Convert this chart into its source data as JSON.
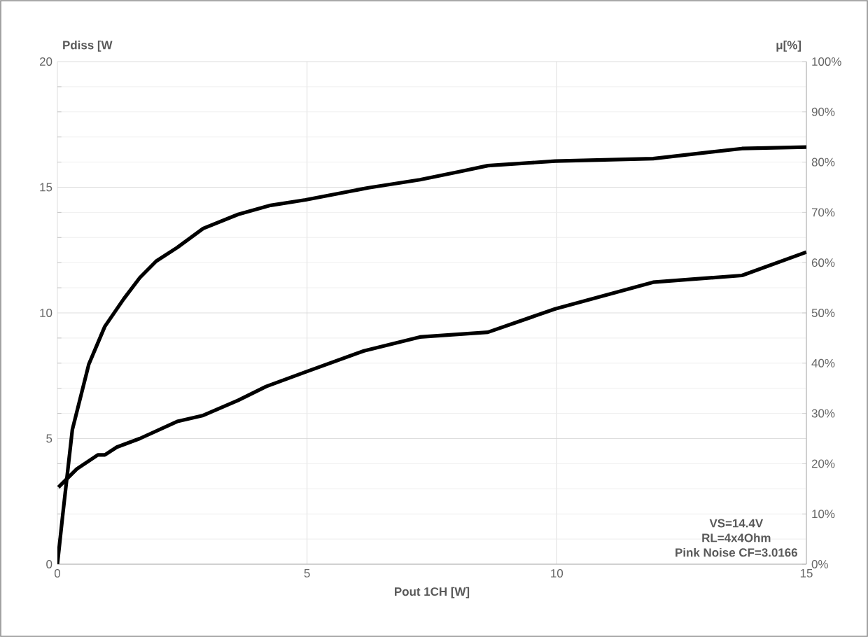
{
  "chart_data": {
    "type": "line",
    "xlabel": "Pout 1CH [W]",
    "ylabel": "Pdiss [W",
    "y2label": "μ[%]",
    "xlim": [
      0,
      15
    ],
    "xticks": [
      0,
      5,
      10,
      15
    ],
    "ylim": [
      0,
      20
    ],
    "yticks": [
      0,
      5,
      10,
      15,
      20
    ],
    "y2lim": [
      0,
      100
    ],
    "y2ticks": [
      {
        "value": 0,
        "label": "0%"
      },
      {
        "value": 10,
        "label": "10%"
      },
      {
        "value": 20,
        "label": "20%"
      },
      {
        "value": 30,
        "label": "30%"
      },
      {
        "value": 40,
        "label": "40%"
      },
      {
        "value": 50,
        "label": "50%"
      },
      {
        "value": 60,
        "label": "60%"
      },
      {
        "value": 70,
        "label": "70%"
      },
      {
        "value": 80,
        "label": "80%"
      },
      {
        "value": 90,
        "label": "90%"
      },
      {
        "value": 100,
        "label": "100%"
      }
    ],
    "grid": true,
    "annotations": [
      "VS=14.4V",
      "RL=4x4Ohm",
      "Pink Noise CF=3.0166"
    ],
    "series": [
      {
        "color": "#000000",
        "x": [
          0.02,
          0.39,
          0.81,
          0.95,
          1.19,
          1.65,
          2.4,
          2.92,
          3.62,
          4.18,
          4.97,
          6.14,
          7.26,
          8.62,
          9.97,
          11.93,
          13.71,
          15.0
        ],
        "values": [
          3.06,
          3.79,
          4.35,
          4.35,
          4.66,
          5.0,
          5.68,
          5.92,
          6.52,
          7.07,
          7.65,
          8.49,
          9.04,
          9.23,
          10.16,
          11.22,
          11.49,
          12.42
        ]
      },
      {
        "color": "#000000",
        "axis": "y2",
        "x": [
          0,
          0.11,
          0.3,
          0.63,
          0.95,
          1.33,
          1.65,
          1.98,
          2.4,
          2.92,
          3.62,
          4.27,
          4.97,
          6.23,
          7.26,
          8.1,
          8.62,
          9.97,
          11.93,
          13.71,
          15.0
        ],
        "values": [
          0,
          10.1,
          26.8,
          39.8,
          47.3,
          52.8,
          57.0,
          60.3,
          63.0,
          66.8,
          69.6,
          71.4,
          72.5,
          74.9,
          76.5,
          78.2,
          79.3,
          80.2,
          80.7,
          82.7,
          83.0
        ]
      }
    ]
  }
}
